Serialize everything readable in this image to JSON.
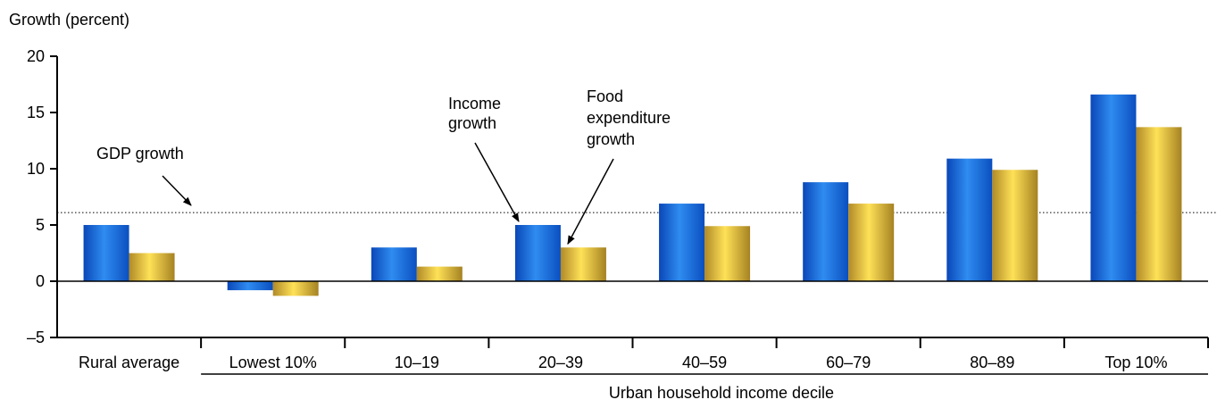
{
  "chart_data": {
    "type": "bar",
    "ylabel": "Growth (percent)",
    "xlabel": "Urban household income decile",
    "ylim": [
      -5,
      20
    ],
    "yticks": [
      -5,
      0,
      5,
      10,
      15,
      20
    ],
    "ytick_labels": [
      "–5",
      "0",
      "5",
      "10",
      "15",
      "20"
    ],
    "categories": [
      "Rural average",
      "Lowest 10%",
      "10–19",
      "20–39",
      "40–59",
      "60–79",
      "80–89",
      "Top 10%"
    ],
    "series": [
      {
        "name": "Income growth",
        "color": "#1f6fd6",
        "values": [
          5.0,
          -0.8,
          3.0,
          5.0,
          6.9,
          8.8,
          10.9,
          16.6
        ]
      },
      {
        "name": "Food expenditure growth",
        "color": "#d9b53a",
        "values": [
          2.5,
          -1.3,
          1.3,
          3.0,
          4.9,
          6.9,
          9.9,
          13.7
        ]
      }
    ],
    "reference_line": {
      "name": "GDP growth",
      "value": 6.1,
      "style": "dotted"
    },
    "annotations": {
      "gdp": "GDP growth",
      "income": [
        "Income",
        "growth"
      ],
      "food": [
        "Food",
        "expenditure",
        "growth"
      ]
    }
  }
}
